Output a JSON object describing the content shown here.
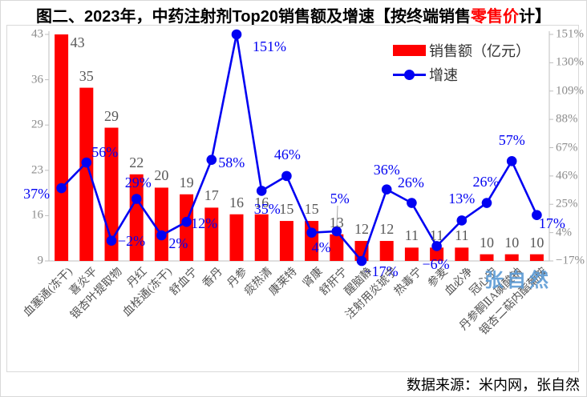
{
  "title": {
    "prefix": "图二、2023年，中药注射剂Top20销售额及增速【按终端销售",
    "highlight": "零售价",
    "suffix": "计】"
  },
  "legend": {
    "sales_label": "销售额（亿元）",
    "growth_label": "增速"
  },
  "watermark": "张自然",
  "source": "数据来源：米内网，张自然",
  "colors": {
    "bar": "#ff0000",
    "line": "#0202f2",
    "axis": "#bfbfbf",
    "bar_label": "#595959",
    "axis_label": "#8c8c8c",
    "title_highlight": "#ff0000",
    "watermark": "#5b9bd5"
  },
  "chart_data": {
    "type": "bar",
    "subtype": "bar+line combo, dual axis",
    "title": "图二、2023年，中药注射剂Top20销售额及增速【按终端销售零售价计】",
    "categories": [
      "血塞通(冻干)",
      "喜炎平",
      "银杏叶提取物",
      "丹红",
      "血栓通(冻干)",
      "舒血宁",
      "香丹",
      "丹参",
      "痰热清",
      "康莱特",
      "肾康",
      "舒肝宁",
      "醒脑静",
      "注射用炎琥宁",
      "热毒宁",
      "参麦",
      "血必净",
      "冠心宁",
      "丹参酮ⅡA磺酸钠",
      "银杏二萜内酯葡胺"
    ],
    "series": [
      {
        "name": "销售额（亿元）",
        "type": "bar",
        "axis": "left",
        "values": [
          43,
          35,
          29,
          22,
          20,
          19,
          17,
          16,
          16,
          15,
          15,
          13,
          12,
          12,
          11,
          11,
          11,
          10,
          10,
          10
        ]
      },
      {
        "name": "增速",
        "type": "line",
        "axis": "right",
        "values_pct": [
          37,
          56,
          -2,
          29,
          2,
          12,
          58,
          151,
          35,
          46,
          4,
          5,
          -17,
          36,
          26,
          -6,
          13,
          26,
          57,
          17
        ]
      }
    ],
    "bar_labels": [
      "43",
      "35",
      "29",
      "22",
      "20",
      "19",
      "17",
      "16",
      "16",
      "15",
      "15",
      "13",
      "12",
      "12",
      "11",
      "11",
      "11",
      "10",
      "10",
      "10"
    ],
    "growth_labels": [
      "37%",
      "56%",
      "−2%",
      "29%",
      "2%",
      "12%",
      "58%",
      "151%",
      "35%",
      "46%",
      "4%",
      "5%",
      "−17%",
      "36%",
      "26%",
      "−6%",
      "13%",
      "26%",
      "57%",
      "17%"
    ],
    "left_axis": {
      "min": 9,
      "max": 43,
      "tick_labels": [
        "43",
        "36",
        "29",
        "23",
        "16",
        "9"
      ]
    },
    "right_axis": {
      "min": -17,
      "max": 151,
      "tick_labels": [
        "151%",
        "130%",
        "109%",
        "88%",
        "67%",
        "46%",
        "25%",
        "4%",
        "−17%"
      ]
    },
    "grid": false,
    "legend_position": "top-right inside plot"
  }
}
